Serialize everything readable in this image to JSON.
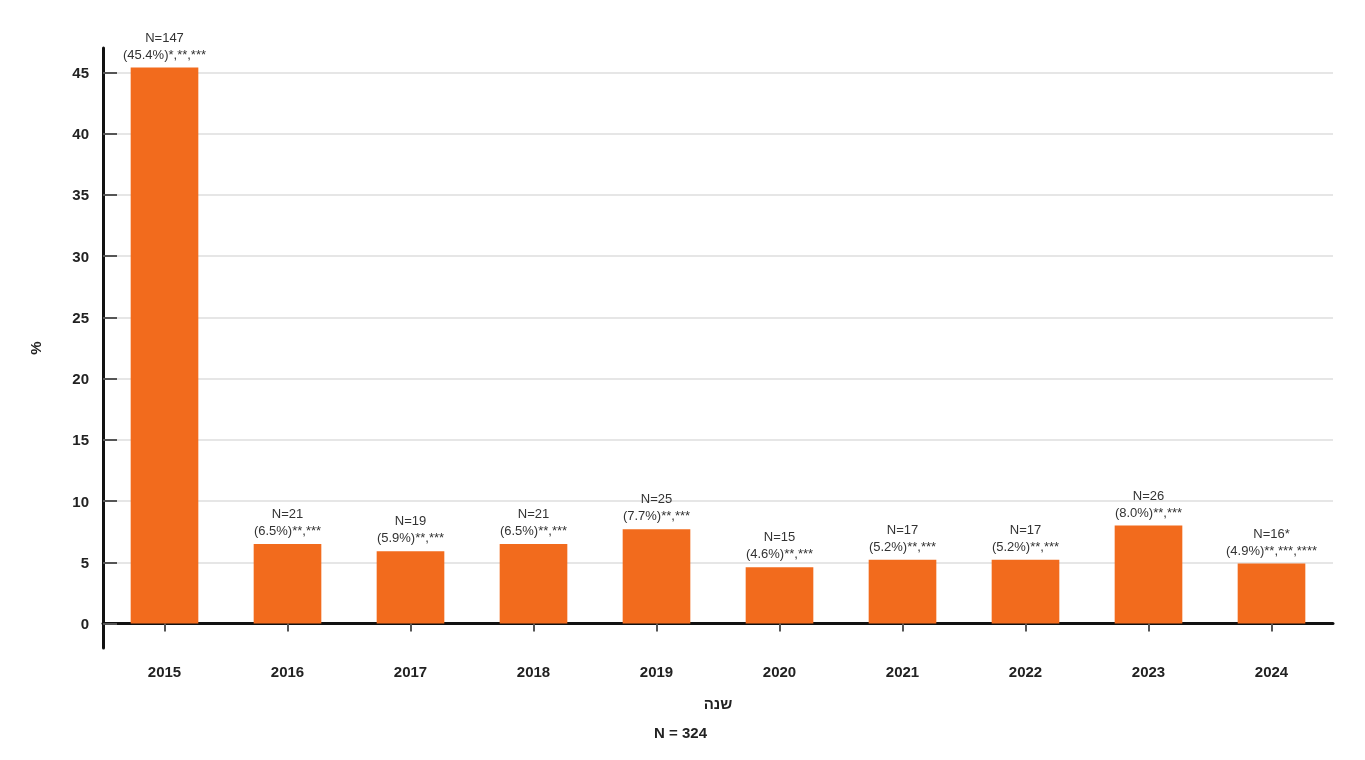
{
  "chart_data": {
    "type": "bar",
    "xlabel": "שנה",
    "ylabel": "%",
    "annotations": [
      "N = 324"
    ],
    "categories": [
      "2015",
      "2016",
      "2017",
      "2018",
      "2019",
      "2020",
      "2021",
      "2022",
      "2023",
      "2024"
    ],
    "values": [
      45.4,
      6.5,
      5.9,
      6.5,
      7.7,
      4.6,
      5.2,
      5.2,
      8.0,
      4.9
    ],
    "value_labels": [
      "N=147\n(45.4%)*,**,***",
      "N=21\n(6.5%)**,***",
      "N=19\n(5.9%)**,***",
      "N=21\n(6.5%)**,***",
      "N=25\n(7.7%)**,***",
      "N=15\n(4.6%)**,***",
      "N=17\n(5.2%)**,***",
      "N=17\n(5.2%)**,***",
      "N=26\n(8.0%)**,***",
      "N=16*\n(4.9%)**,***,****"
    ],
    "color": "#f26b1d",
    "ylim": [
      -2,
      47
    ],
    "yticks": [
      0,
      5,
      10,
      15,
      20,
      25,
      30,
      35,
      40,
      45
    ],
    "grid": "y"
  }
}
